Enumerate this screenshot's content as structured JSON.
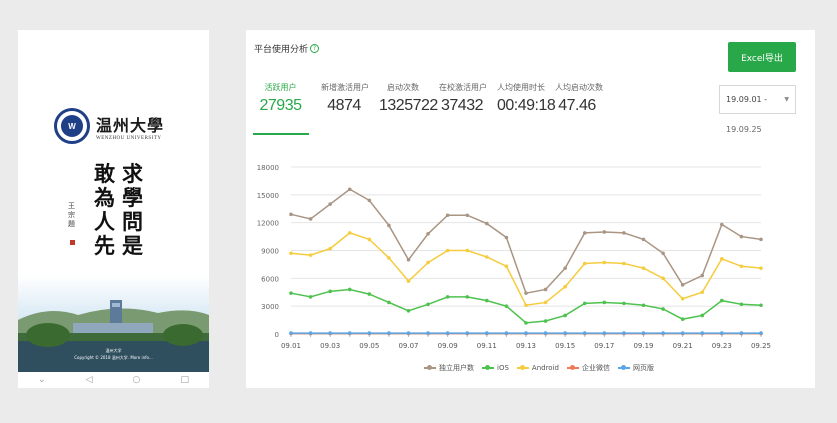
{
  "splash": {
    "logo_cn": "温州大學",
    "logo_en": "WENZHOU UNIVERSITY",
    "motto_col1": [
      "求",
      "學",
      "問",
      "是"
    ],
    "motto_col2": [
      "敢",
      "為",
      "人",
      "先"
    ],
    "signature": [
      "王",
      "宗",
      "題"
    ],
    "photo_caption": "温州大学",
    "copyright": "Copyright © 2018 温州大学. More info..."
  },
  "card": {
    "title": "平台使用分析",
    "help_icon": "?",
    "export_label": "Excel导出",
    "date_start": "19.09.01 -",
    "date_end": "19.09.25",
    "stats": [
      {
        "label": "活跃用户",
        "value": "27935",
        "active": true
      },
      {
        "label": "新增激活用户",
        "value": "4874"
      },
      {
        "label": "启动次数",
        "value": "1325722"
      },
      {
        "label": "在校激活用户",
        "value": "37432"
      },
      {
        "label": "人均使用时长",
        "value": "00:49:18"
      },
      {
        "label": "人均启动次数",
        "value": "47.46"
      }
    ]
  },
  "colors": {
    "accent": "#29a84a",
    "series_total": "#a99584",
    "series_ios": "#4ec24e",
    "series_android": "#f5cc3d",
    "series_wechat": "#f07a55",
    "series_web": "#5aa6e6"
  },
  "chart_data": {
    "type": "line",
    "x": [
      "09.01",
      "09.02",
      "09.03",
      "09.04",
      "09.05",
      "09.06",
      "09.07",
      "09.08",
      "09.09",
      "09.10",
      "09.11",
      "09.12",
      "09.13",
      "09.14",
      "09.15",
      "09.16",
      "09.17",
      "09.18",
      "09.19",
      "09.20",
      "09.21",
      "09.22",
      "09.23",
      "09.24",
      "09.25"
    ],
    "x_tick_labels": [
      "09.01",
      "09.03",
      "09.05",
      "09.07",
      "09.09",
      "09.11",
      "09.13",
      "09.15",
      "09.17",
      "09.19",
      "09.21",
      "09.23",
      "09.25"
    ],
    "ylim": [
      0,
      18000
    ],
    "y_ticks": [
      "0",
      "3000",
      "6000",
      "9000",
      "12000",
      "15000",
      "18000"
    ],
    "grid": true,
    "legend_position": "bottom",
    "series": [
      {
        "name": "独立用户数",
        "color_key": "series_total",
        "values": [
          12900,
          12400,
          14000,
          15600,
          14400,
          11700,
          8000,
          10800,
          12800,
          12800,
          11900,
          10400,
          4400,
          4800,
          7100,
          10900,
          11000,
          10900,
          10200,
          8700,
          5300,
          6300,
          11800,
          10500,
          10200
        ]
      },
      {
        "name": "iOS",
        "color_key": "series_ios",
        "values": [
          4400,
          4000,
          4600,
          4800,
          4300,
          3400,
          2500,
          3200,
          4000,
          4000,
          3600,
          3000,
          1200,
          1400,
          2000,
          3300,
          3400,
          3300,
          3100,
          2700,
          1600,
          2000,
          3600,
          3200,
          3100
        ]
      },
      {
        "name": "Android",
        "color_key": "series_android",
        "values": [
          8700,
          8500,
          9200,
          10900,
          10200,
          8200,
          5700,
          7700,
          9000,
          9000,
          8300,
          7300,
          3100,
          3400,
          5100,
          7600,
          7700,
          7600,
          7100,
          6000,
          3800,
          4500,
          8100,
          7300,
          7100
        ]
      },
      {
        "name": "企业微信",
        "color_key": "series_wechat",
        "values": [
          50,
          50,
          50,
          50,
          50,
          50,
          50,
          50,
          50,
          50,
          50,
          50,
          50,
          50,
          50,
          50,
          50,
          50,
          50,
          50,
          50,
          50,
          50,
          50,
          50
        ]
      },
      {
        "name": "网页版",
        "color_key": "series_web",
        "values": [
          100,
          100,
          100,
          100,
          100,
          100,
          100,
          100,
          100,
          100,
          100,
          100,
          100,
          100,
          100,
          100,
          100,
          100,
          100,
          100,
          100,
          100,
          100,
          100,
          100
        ]
      }
    ]
  }
}
